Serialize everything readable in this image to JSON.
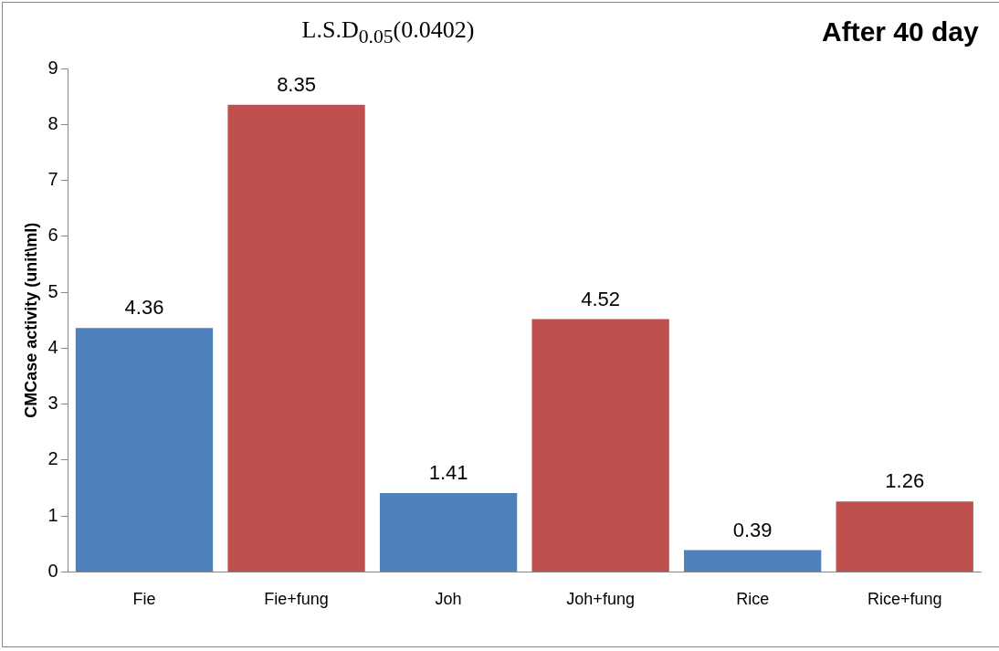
{
  "chart_data": {
    "type": "bar",
    "title": "After 40 day",
    "annotations": [
      "L.S.D$_{0.05}$(0.0402)"
    ],
    "ylabel": "CMCase activity (unit\\ml)",
    "categories": [
      "Fie",
      "Fie+fung",
      "Joh",
      "Joh+fung",
      "Rice",
      "Rice+fung"
    ],
    "values": [
      4.36,
      8.35,
      1.41,
      4.52,
      0.39,
      1.26
    ],
    "colors": [
      "#4f81bd",
      "#c0504d",
      "#4f81bd",
      "#c0504d",
      "#4f81bd",
      "#c0504d"
    ],
    "ylim": [
      0,
      9
    ],
    "yticks": [
      0,
      1,
      2,
      3,
      4,
      5,
      6,
      7,
      8,
      9
    ],
    "grid": false,
    "legend": false,
    "data_labels": true
  }
}
